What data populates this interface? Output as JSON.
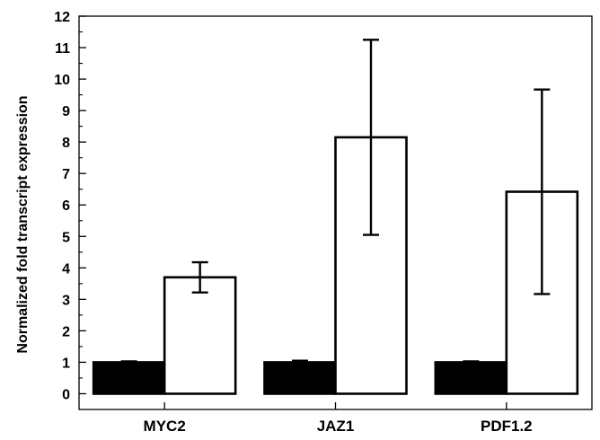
{
  "chart_data": {
    "type": "bar",
    "title": "",
    "xlabel": "",
    "ylabel": "Normalized fold transcript expression",
    "ylim": [
      -0.5,
      12
    ],
    "yticks": [
      0,
      1,
      2,
      3,
      4,
      5,
      6,
      7,
      8,
      9,
      10,
      11,
      12
    ],
    "categories": [
      "MYC2",
      "JAZ1",
      "PDF1.2"
    ],
    "grid": false,
    "legend": "none",
    "series": [
      {
        "color": "#000000",
        "values": [
          1.0,
          1.0,
          1.0
        ],
        "error": [
          0.03,
          0.05,
          0.03
        ]
      },
      {
        "color": "#ffffff",
        "values": [
          3.7,
          8.15,
          6.42
        ],
        "error": [
          0.48,
          3.1,
          3.25
        ]
      }
    ]
  }
}
